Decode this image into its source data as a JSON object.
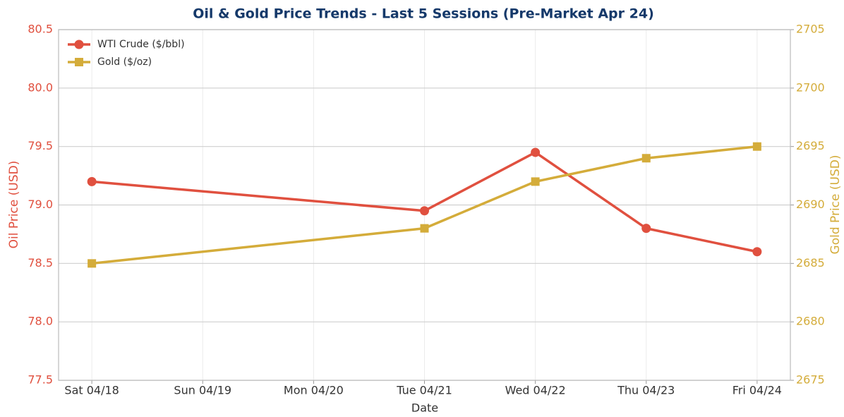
{
  "chart_data": {
    "type": "line",
    "title": "Oil & Gold Price Trends - Last 5 Sessions (Pre-Market Apr 24)",
    "x_label": "Date",
    "y_label": "Oil Price (USD)",
    "y2_label": "Gold Price (USD)",
    "x": [
      18,
      21,
      22,
      23,
      24
    ],
    "xlim": [
      17.7,
      24.3
    ],
    "xticks": [
      {
        "value": 18,
        "label": "Sat 04/18"
      },
      {
        "value": 19,
        "label": "Sun 04/19"
      },
      {
        "value": 20,
        "label": "Mon 04/20"
      },
      {
        "value": 21,
        "label": "Tue 04/21"
      },
      {
        "value": 22,
        "label": "Wed 04/22"
      },
      {
        "value": 23,
        "label": "Thu 04/23"
      },
      {
        "value": 24,
        "label": "Fri 04/24"
      }
    ],
    "ylim": [
      77.5,
      80.5
    ],
    "yticks": [
      77.5,
      {
        "value": 78,
        "label": "78.0"
      },
      78.5,
      {
        "value": 79,
        "label": "79.0"
      },
      79.5,
      {
        "value": 80,
        "label": "80.0"
      },
      80.5
    ],
    "y2lim": [
      2675,
      2705
    ],
    "y2ticks": [
      2675,
      2680,
      2685,
      2690,
      2695,
      2700,
      2705
    ],
    "grid": true,
    "legend": "upper left",
    "series": [
      {
        "name": "WTI Crude ($/bbl)",
        "color": "#e0503f",
        "marker": "circle",
        "values": [
          79.2,
          78.95,
          79.45,
          78.8,
          78.6
        ]
      },
      {
        "name": "Gold ($/oz)",
        "color": "#d4ac3a",
        "marker": "square",
        "axis": "y2",
        "values": [
          2685,
          2688,
          2692,
          2694,
          2695
        ]
      }
    ]
  }
}
